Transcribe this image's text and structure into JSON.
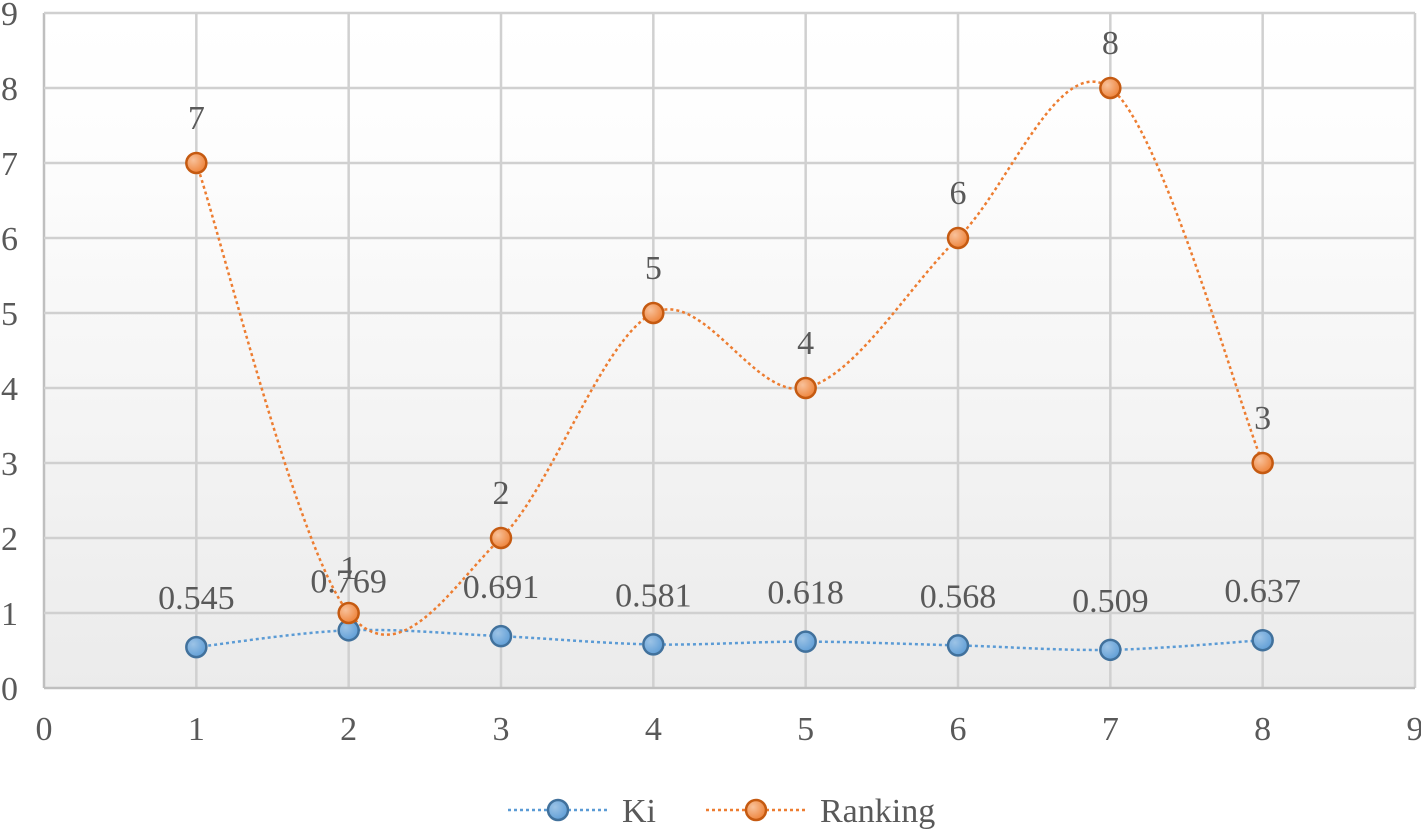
{
  "chart_data": {
    "type": "scatter",
    "xlim": [
      0,
      9
    ],
    "ylim": [
      0,
      9
    ],
    "x_ticks": [
      "0",
      "1",
      "2",
      "3",
      "4",
      "5",
      "6",
      "7",
      "8",
      "9"
    ],
    "y_ticks": [
      "0",
      "1",
      "2",
      "3",
      "4",
      "5",
      "6",
      "7",
      "8",
      "9"
    ],
    "grid": true,
    "legend_position": "bottom",
    "smooth_lines": true,
    "series": [
      {
        "name": "Ki",
        "color": "#5b9bd5",
        "x": [
          1,
          2,
          3,
          4,
          5,
          6,
          7,
          8
        ],
        "y": [
          0.545,
          0.769,
          0.691,
          0.581,
          0.618,
          0.568,
          0.509,
          0.637
        ],
        "labels": [
          "0.545",
          "0.769",
          "0.691",
          "0.581",
          "0.618",
          "0.568",
          "0.509",
          "0.637"
        ]
      },
      {
        "name": "Ranking",
        "color": "#ed7d31",
        "x": [
          1,
          2,
          3,
          4,
          5,
          6,
          7,
          8
        ],
        "y": [
          7,
          1,
          2,
          5,
          4,
          6,
          8,
          3
        ],
        "labels": [
          "7",
          "1",
          "2",
          "5",
          "4",
          "6",
          "8",
          "3"
        ]
      }
    ]
  }
}
